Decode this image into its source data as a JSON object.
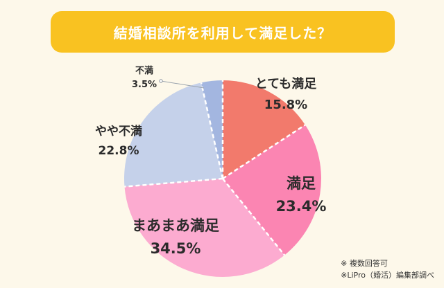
{
  "title": "結婚相談所を利用して満足した？",
  "chart_data": {
    "type": "pie",
    "title": "結婚相談所を利用して満足した？",
    "categories": [
      "とても満足",
      "満足",
      "まあまあ満足",
      "やや不満",
      "不満"
    ],
    "values": [
      15.8,
      23.4,
      34.5,
      22.8,
      3.5
    ],
    "value_labels": [
      "15.8%",
      "23.4%",
      "34.5%",
      "22.8%",
      "3.5%"
    ],
    "colors": [
      "#f27a6c",
      "#fb85b2",
      "#fcabd0",
      "#c5d1ea",
      "#a3b6e0"
    ],
    "start_angle_deg": 0,
    "direction": "clockwise"
  },
  "notes": [
    "※ 複数回答可",
    "※LiPro（婚活）編集部調べ"
  ]
}
